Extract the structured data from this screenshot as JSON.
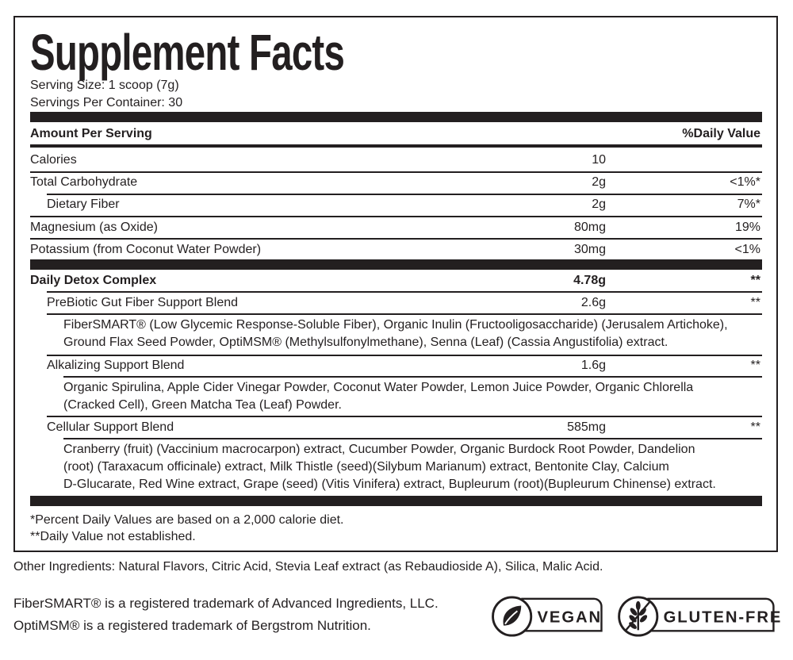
{
  "title": "Supplement Facts",
  "serving_size": "Serving Size: 1 scoop (7g)",
  "servings_per_container": "Servings Per Container: 30",
  "header": {
    "amount": "Amount Per Serving",
    "dv": "%Daily Value"
  },
  "nutrients": [
    {
      "name": "Calories",
      "amount": "10",
      "dv": ""
    },
    {
      "name": "Total Carbohydrate",
      "amount": "2g",
      "dv": "<1%*"
    },
    {
      "name": "Dietary Fiber",
      "amount": "2g",
      "dv": "7%*"
    },
    {
      "name": "Magnesium (as Oxide)",
      "amount": "80mg",
      "dv": "19%"
    },
    {
      "name": "Potassium (from Coconut Water Powder)",
      "amount": "30mg",
      "dv": "<1%"
    }
  ],
  "complex": {
    "name": "Daily Detox Complex",
    "amount": "4.78g",
    "dv": "**"
  },
  "blends": [
    {
      "name": "PreBiotic Gut Fiber Support Blend",
      "amount": "2.6g",
      "dv": "**",
      "lines": [
        "FiberSMART® (Low Glycemic Response-Soluble Fiber), Organic Inulin (Fructooligosaccharide) (Jerusalem Artichoke),",
        "Ground Flax Seed Powder, OptiMSM® (Methylsulfonylmethane), Senna (Leaf) (Cassia Angustifolia) extract."
      ]
    },
    {
      "name": "Alkalizing Support Blend",
      "amount": "1.6g",
      "dv": "**",
      "lines": [
        "Organic Spirulina, Apple Cider Vinegar Powder, Coconut Water Powder, Lemon Juice Powder, Organic Chlorella",
        "(Cracked Cell), Green Matcha Tea (Leaf) Powder."
      ]
    },
    {
      "name": "Cellular Support Blend",
      "amount": "585mg",
      "dv": "**",
      "lines": [
        "Cranberry (fruit) (Vaccinium macrocarpon) extract, Cucumber Powder, Organic Burdock Root Powder, Dandelion",
        "(root) (Taraxacum officinale) extract, Milk Thistle (seed)(Silybum Marianum) extract, Bentonite Clay, Calcium",
        "D-Glucarate, Red Wine extract, Grape (seed) (Vitis Vinifera) extract, Bupleurum (root)(Bupleurum Chinense) extract."
      ]
    }
  ],
  "footnotes": [
    "*Percent Daily Values are based on a 2,000 calorie diet.",
    "**Daily Value not established."
  ],
  "other_ingredients": "Other Ingredients: Natural Flavors, Citric Acid, Stevia Leaf extract (as Rebaudioside A), Silica, Malic Acid.",
  "trademarks": [
    "FiberSMART® is a registered trademark of Advanced Ingredients, LLC.",
    "OptiMSM® is a registered trademark of Bergstrom Nutrition."
  ],
  "badges": [
    {
      "label": "VEGAN",
      "icon": "leaf-icon"
    },
    {
      "label": "GLUTEN-FREE",
      "icon": "crossed-wheat-icon"
    }
  ]
}
